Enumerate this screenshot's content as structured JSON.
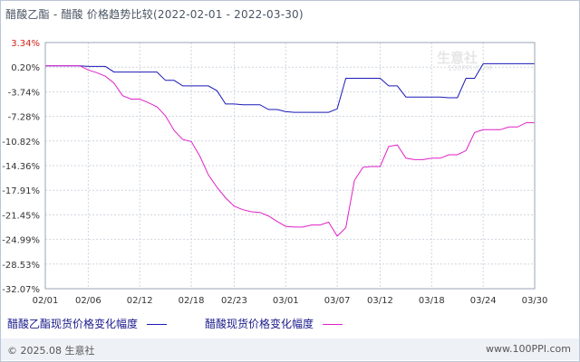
{
  "title": "醋酸乙酯 - 醋酸 价格趋势比较(2022-02-01 - 2022-03-30)",
  "watermark": {
    "text": "生意社",
    "url": "100PPI.COM"
  },
  "chart_data": {
    "type": "line",
    "title": "醋酸乙酯 - 醋酸 价格趋势比较(2022-02-01 - 2022-03-30)",
    "xlabel": "",
    "ylabel": "",
    "x_ticks": [
      "02/01",
      "02/06",
      "02/12",
      "02/18",
      "02/23",
      "03/01",
      "03/07",
      "03/12",
      "03/18",
      "03/24",
      "03/30"
    ],
    "y_ticks": [
      "3.34%",
      "0.20%",
      "-3.74%",
      "-7.28%",
      "-10.82%",
      "-14.36%",
      "-17.91%",
      "-21.45%",
      "-24.99%",
      "-28.53%",
      "-32.07%"
    ],
    "ylim": [
      -32.07,
      3.34
    ],
    "grid": true,
    "legend_position": "bottom",
    "series": [
      {
        "name": "醋酸乙酯现货价格变化幅度",
        "color": "#1a1ab8",
        "points": [
          [
            "02/01",
            0.0
          ],
          [
            "02/02",
            0.0
          ],
          [
            "02/03",
            0.0
          ],
          [
            "02/04",
            0.0
          ],
          [
            "02/05",
            0.0
          ],
          [
            "02/06",
            -0.1
          ],
          [
            "02/07",
            -0.1
          ],
          [
            "02/08",
            -0.1
          ],
          [
            "02/09",
            -0.9
          ],
          [
            "02/10",
            -0.9
          ],
          [
            "02/11",
            -0.9
          ],
          [
            "02/12",
            -0.9
          ],
          [
            "02/13",
            -0.9
          ],
          [
            "02/14",
            -0.9
          ],
          [
            "02/15",
            -2.1
          ],
          [
            "02/16",
            -2.1
          ],
          [
            "02/17",
            -2.9
          ],
          [
            "02/18",
            -2.9
          ],
          [
            "02/19",
            -2.9
          ],
          [
            "02/20",
            -2.9
          ],
          [
            "02/21",
            -3.6
          ],
          [
            "02/22",
            -5.5
          ],
          [
            "02/23",
            -5.5
          ],
          [
            "02/24",
            -5.6
          ],
          [
            "02/25",
            -5.6
          ],
          [
            "02/26",
            -5.6
          ],
          [
            "02/27",
            -6.3
          ],
          [
            "02/28",
            -6.3
          ],
          [
            "03/01",
            -6.6
          ],
          [
            "03/02",
            -6.7
          ],
          [
            "03/03",
            -6.7
          ],
          [
            "03/04",
            -6.7
          ],
          [
            "03/05",
            -6.7
          ],
          [
            "03/06",
            -6.7
          ],
          [
            "03/07",
            -6.2
          ],
          [
            "03/08",
            -1.8
          ],
          [
            "03/09",
            -1.8
          ],
          [
            "03/10",
            -1.8
          ],
          [
            "03/11",
            -1.8
          ],
          [
            "03/12",
            -1.8
          ],
          [
            "03/13",
            -2.9
          ],
          [
            "03/14",
            -2.9
          ],
          [
            "03/15",
            -4.5
          ],
          [
            "03/16",
            -4.5
          ],
          [
            "03/17",
            -4.5
          ],
          [
            "03/18",
            -4.5
          ],
          [
            "03/19",
            -4.5
          ],
          [
            "03/20",
            -4.6
          ],
          [
            "03/21",
            -4.6
          ],
          [
            "03/22",
            -1.8
          ],
          [
            "03/23",
            -1.8
          ],
          [
            "03/24",
            0.3
          ],
          [
            "03/25",
            0.3
          ],
          [
            "03/26",
            0.3
          ],
          [
            "03/27",
            0.3
          ],
          [
            "03/28",
            0.3
          ],
          [
            "03/29",
            0.3
          ],
          [
            "03/30",
            0.3
          ]
        ]
      },
      {
        "name": "醋酸现货价格变化幅度",
        "color": "#e020c8",
        "points": [
          [
            "02/01",
            0.0
          ],
          [
            "02/02",
            0.0
          ],
          [
            "02/03",
            0.0
          ],
          [
            "02/04",
            0.0
          ],
          [
            "02/05",
            0.0
          ],
          [
            "02/06",
            -0.6
          ],
          [
            "02/07",
            -1.0
          ],
          [
            "02/08",
            -1.5
          ],
          [
            "02/09",
            -2.5
          ],
          [
            "02/10",
            -4.3
          ],
          [
            "02/11",
            -4.8
          ],
          [
            "02/12",
            -4.8
          ],
          [
            "02/13",
            -5.3
          ],
          [
            "02/14",
            -5.9
          ],
          [
            "02/15",
            -7.2
          ],
          [
            "02/16",
            -9.3
          ],
          [
            "02/17",
            -10.6
          ],
          [
            "02/18",
            -10.9
          ],
          [
            "02/19",
            -13.0
          ],
          [
            "02/20",
            -15.7
          ],
          [
            "02/21",
            -17.5
          ],
          [
            "02/22",
            -19.0
          ],
          [
            "02/23",
            -20.2
          ],
          [
            "02/24",
            -20.7
          ],
          [
            "02/25",
            -21.0
          ],
          [
            "02/26",
            -21.1
          ],
          [
            "02/27",
            -21.6
          ],
          [
            "02/28",
            -22.4
          ],
          [
            "03/01",
            -23.1
          ],
          [
            "03/02",
            -23.2
          ],
          [
            "03/03",
            -23.2
          ],
          [
            "03/04",
            -22.9
          ],
          [
            "03/05",
            -22.9
          ],
          [
            "03/06",
            -22.5
          ],
          [
            "03/07",
            -24.5
          ],
          [
            "03/08",
            -23.3
          ],
          [
            "03/09",
            -16.5
          ],
          [
            "03/10",
            -14.6
          ],
          [
            "03/11",
            -14.5
          ],
          [
            "03/12",
            -14.5
          ],
          [
            "03/13",
            -11.6
          ],
          [
            "03/14",
            -11.4
          ],
          [
            "03/15",
            -13.3
          ],
          [
            "03/16",
            -13.5
          ],
          [
            "03/17",
            -13.5
          ],
          [
            "03/18",
            -13.3
          ],
          [
            "03/19",
            -13.3
          ],
          [
            "03/20",
            -12.8
          ],
          [
            "03/21",
            -12.8
          ],
          [
            "03/22",
            -12.2
          ],
          [
            "03/23",
            -9.6
          ],
          [
            "03/24",
            -9.2
          ],
          [
            "03/25",
            -9.2
          ],
          [
            "03/26",
            -9.2
          ],
          [
            "03/27",
            -8.8
          ],
          [
            "03/28",
            -8.8
          ],
          [
            "03/29",
            -8.2
          ],
          [
            "03/30",
            -8.2
          ]
        ]
      }
    ]
  },
  "footer": {
    "copyright": "© 2025.08 生意社",
    "website": "www.100PPI.com"
  }
}
